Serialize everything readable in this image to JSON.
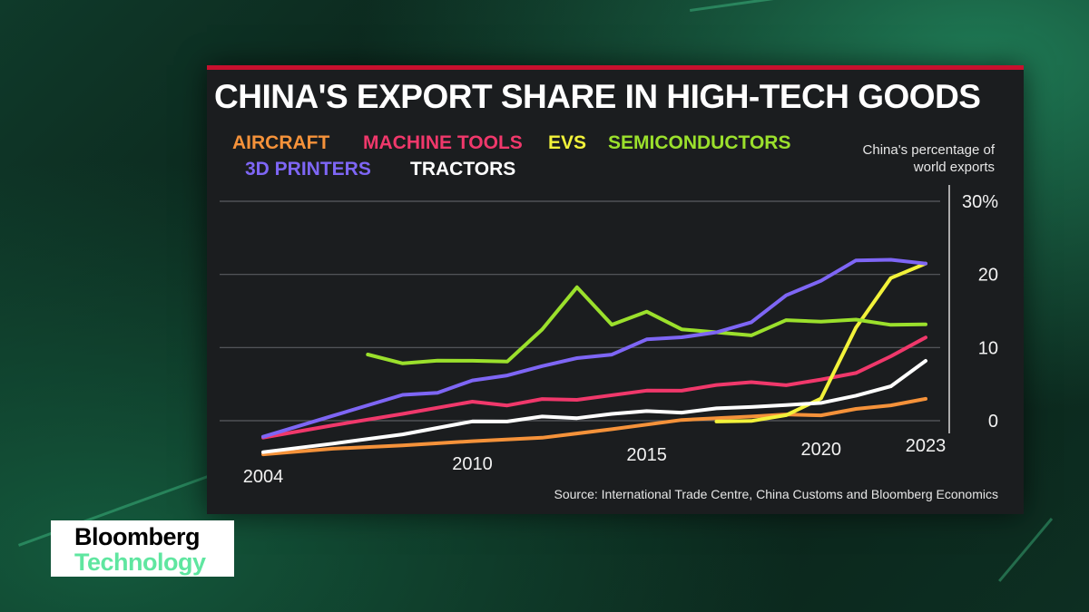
{
  "chart_data": {
    "type": "line",
    "title": "CHINA'S EXPORT SHARE IN HIGH-TECH GOODS",
    "ylabel": "China's percentage of world exports",
    "ylim": [
      0,
      30
    ],
    "yticks": [
      {
        "value": 30,
        "label": "30%"
      },
      {
        "value": 20,
        "label": "20"
      },
      {
        "value": 10,
        "label": "10"
      },
      {
        "value": 0,
        "label": "0"
      }
    ],
    "xticks": [
      {
        "value": 2004,
        "label": "2004"
      },
      {
        "value": 2010,
        "label": "2010"
      },
      {
        "value": 2015,
        "label": "2015"
      },
      {
        "value": 2020,
        "label": "2020"
      },
      {
        "value": 2023,
        "label": "2023"
      }
    ],
    "series": [
      {
        "name": "AIRCRAFT",
        "color": "#f5923a",
        "points": [
          [
            2004,
            -4.6
          ],
          [
            2006,
            -4.0
          ],
          [
            2008,
            -3.7
          ],
          [
            2010,
            -3.3
          ],
          [
            2012,
            -3.0
          ],
          [
            2014,
            -2.0
          ],
          [
            2016,
            -0.9
          ],
          [
            2018,
            -0.6
          ],
          [
            2019,
            -0.4
          ],
          [
            2020,
            -0.6
          ],
          [
            2021,
            0.2
          ],
          [
            2022,
            0.6
          ],
          [
            2023,
            1.4
          ]
        ]
      },
      {
        "name": "MACHINE TOOLS",
        "color": "#f0386b",
        "points": [
          [
            2004,
            -2.3
          ],
          [
            2006,
            -0.8
          ],
          [
            2008,
            0.6
          ],
          [
            2010,
            2.1
          ],
          [
            2011,
            1.5
          ],
          [
            2012,
            2.3
          ],
          [
            2013,
            2.1
          ],
          [
            2015,
            3.2
          ],
          [
            2016,
            3.1
          ],
          [
            2017,
            3.8
          ],
          [
            2018,
            4.1
          ],
          [
            2019,
            3.6
          ],
          [
            2020,
            4.3
          ],
          [
            2021,
            5.1
          ],
          [
            2022,
            7.3
          ],
          [
            2023,
            9.8
          ]
        ]
      },
      {
        "name": "EVS",
        "color": "#f2f23a",
        "points": [
          [
            2017,
            -1.2
          ],
          [
            2018,
            -1.2
          ],
          [
            2019,
            -0.5
          ],
          [
            2020,
            1.7
          ],
          [
            2021,
            11.3
          ],
          [
            2022,
            18.0
          ],
          [
            2023,
            19.9
          ]
        ]
      },
      {
        "name": "SEMICONDUCTORS",
        "color": "#9be02c",
        "points": [
          [
            2007,
            8.8
          ],
          [
            2008,
            7.5
          ],
          [
            2009,
            7.8
          ],
          [
            2010,
            7.7
          ],
          [
            2011,
            7.5
          ],
          [
            2012,
            11.8
          ],
          [
            2013,
            17.5
          ],
          [
            2014,
            12.3
          ],
          [
            2015,
            14.0
          ],
          [
            2016,
            11.5
          ],
          [
            2018,
            10.5
          ],
          [
            2019,
            12.5
          ],
          [
            2020,
            12.2
          ],
          [
            2021,
            12.4
          ],
          [
            2022,
            11.6
          ],
          [
            2023,
            11.6
          ]
        ]
      },
      {
        "name": "3D PRINTERS",
        "color": "#7e66f5",
        "points": [
          [
            2004,
            -2.2
          ],
          [
            2006,
            0.5
          ],
          [
            2008,
            3.2
          ],
          [
            2009,
            3.4
          ],
          [
            2010,
            5.0
          ],
          [
            2011,
            5.6
          ],
          [
            2012,
            6.8
          ],
          [
            2013,
            7.8
          ],
          [
            2014,
            8.2
          ],
          [
            2015,
            10.2
          ],
          [
            2016,
            10.4
          ],
          [
            2017,
            11.0
          ],
          [
            2018,
            12.3
          ],
          [
            2019,
            15.9
          ],
          [
            2020,
            17.8
          ],
          [
            2021,
            20.5
          ],
          [
            2022,
            20.5
          ],
          [
            2023,
            19.9
          ]
        ]
      },
      {
        "name": "TRACTORS",
        "color": "#ffffff",
        "points": [
          [
            2004,
            -4.3
          ],
          [
            2006,
            -3.3
          ],
          [
            2008,
            -2.2
          ],
          [
            2010,
            -0.6
          ],
          [
            2011,
            -0.7
          ],
          [
            2012,
            -0.1
          ],
          [
            2013,
            -0.4
          ],
          [
            2014,
            0.1
          ],
          [
            2015,
            0.4
          ],
          [
            2016,
            0.1
          ],
          [
            2017,
            0.6
          ],
          [
            2018,
            0.7
          ],
          [
            2019,
            0.9
          ],
          [
            2020,
            1.1
          ],
          [
            2021,
            2.0
          ],
          [
            2022,
            3.2
          ],
          [
            2023,
            6.6
          ]
        ]
      }
    ],
    "grid": true,
    "legend_placement": "top-left"
  },
  "source": "Source: International Trade Centre, China Customs and Bloomberg Economics",
  "branding": {
    "line1": "Bloomberg",
    "line2": "Technology"
  }
}
